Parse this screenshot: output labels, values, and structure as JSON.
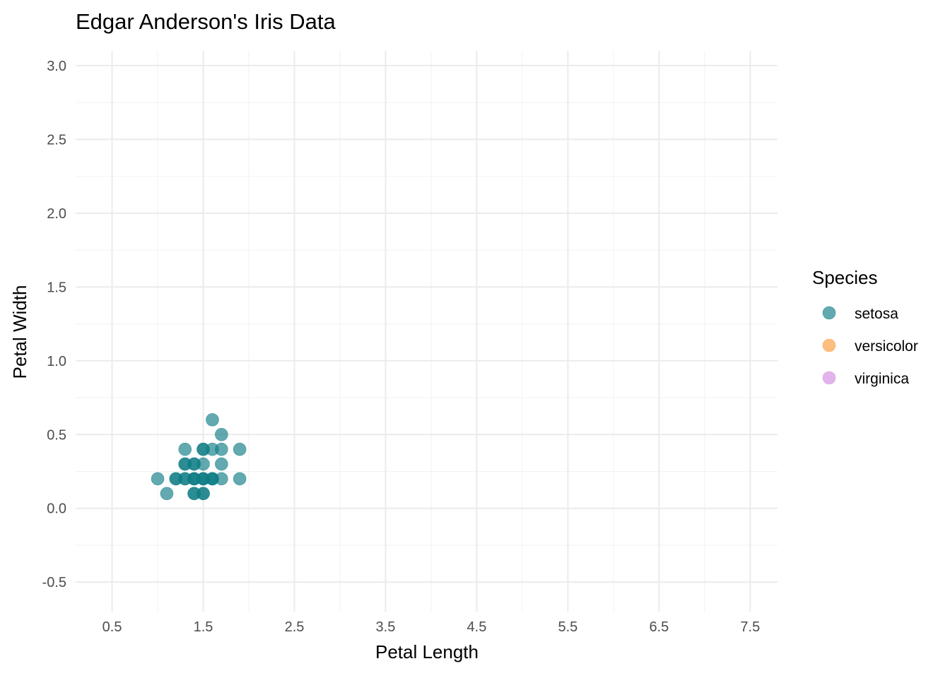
{
  "chart_data": {
    "type": "scatter",
    "title": "Edgar Anderson's Iris Data",
    "xlabel": "Petal Length",
    "ylabel": "Petal Width",
    "xlim": [
      0.1,
      7.8
    ],
    "ylim": [
      -0.7,
      3.1
    ],
    "xticks": [
      0.5,
      1.5,
      2.5,
      3.5,
      4.5,
      5.5,
      6.5,
      7.5
    ],
    "xtick_labels": [
      "0.5",
      "1.5",
      "2.5",
      "3.5",
      "4.5",
      "5.5",
      "6.5",
      "7.5"
    ],
    "yticks": [
      -0.5,
      0.0,
      0.5,
      1.0,
      1.5,
      2.0,
      2.5,
      3.0
    ],
    "ytick_labels": [
      "-0.5",
      "0.0",
      "0.5",
      "1.0",
      "1.5",
      "2.0",
      "2.5",
      "3.0"
    ],
    "grid": true,
    "legend": {
      "title": "Species",
      "position": "right",
      "entries": [
        {
          "label": "setosa",
          "color": "#0e7c86"
        },
        {
          "label": "versicolor",
          "color": "#fb9c3a"
        },
        {
          "label": "virginica",
          "color": "#d48be0"
        }
      ]
    },
    "series": [
      {
        "name": "setosa",
        "color": "#0e7c86",
        "opacity": 0.65,
        "points": [
          [
            1.6,
            0.6
          ],
          [
            1.7,
            0.5
          ],
          [
            1.3,
            0.4
          ],
          [
            1.5,
            0.4
          ],
          [
            1.5,
            0.4
          ],
          [
            1.6,
            0.4
          ],
          [
            1.7,
            0.4
          ],
          [
            1.9,
            0.4
          ],
          [
            1.3,
            0.3
          ],
          [
            1.3,
            0.3
          ],
          [
            1.4,
            0.3
          ],
          [
            1.4,
            0.3
          ],
          [
            1.5,
            0.3
          ],
          [
            1.7,
            0.3
          ],
          [
            1.0,
            0.2
          ],
          [
            1.2,
            0.2
          ],
          [
            1.2,
            0.2
          ],
          [
            1.3,
            0.2
          ],
          [
            1.3,
            0.2
          ],
          [
            1.4,
            0.2
          ],
          [
            1.4,
            0.2
          ],
          [
            1.4,
            0.2
          ],
          [
            1.5,
            0.2
          ],
          [
            1.5,
            0.2
          ],
          [
            1.5,
            0.2
          ],
          [
            1.6,
            0.2
          ],
          [
            1.6,
            0.2
          ],
          [
            1.6,
            0.2
          ],
          [
            1.7,
            0.2
          ],
          [
            1.9,
            0.2
          ],
          [
            1.1,
            0.1
          ],
          [
            1.4,
            0.1
          ],
          [
            1.4,
            0.1
          ],
          [
            1.5,
            0.1
          ],
          [
            1.5,
            0.1
          ]
        ]
      },
      {
        "name": "versicolor",
        "color": "#fb9c3a",
        "opacity": 0.65,
        "points": []
      },
      {
        "name": "virginica",
        "color": "#d48be0",
        "opacity": 0.65,
        "points": []
      }
    ]
  }
}
